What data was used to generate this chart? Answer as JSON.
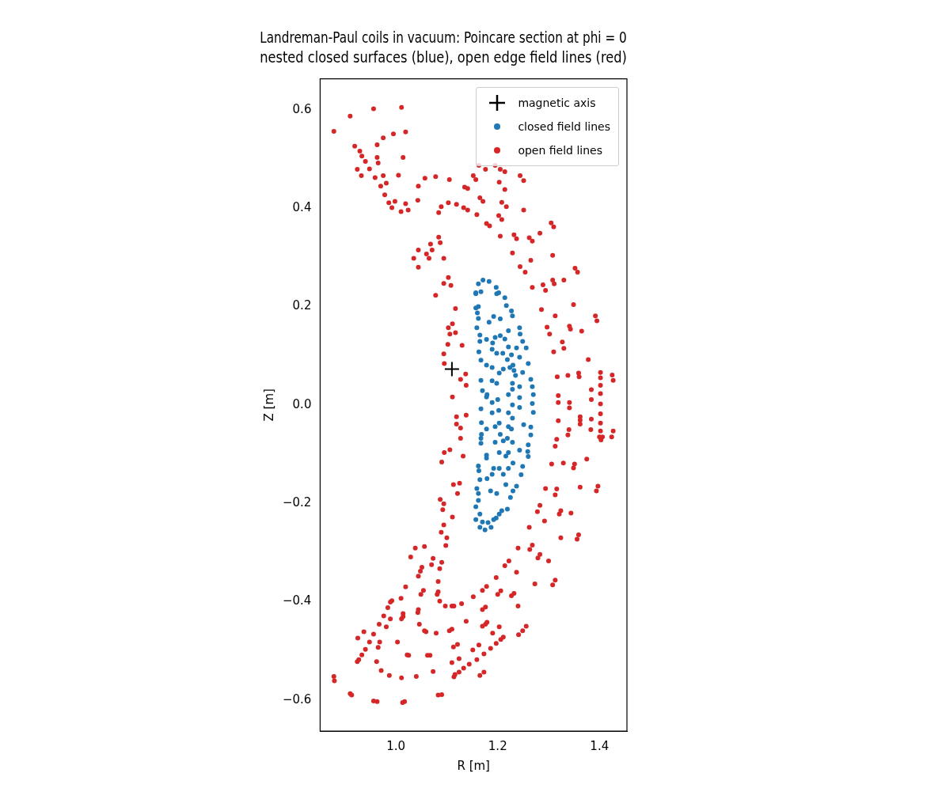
{
  "chart_data": {
    "type": "scatter",
    "title": "Landreman-Paul coils in vacuum: Poincare section at phi = 0",
    "subtitle": "nested closed surfaces (blue), open edge field lines (red)",
    "xlabel": "R [m]",
    "ylabel": "Z [m]",
    "xlim": [
      0.851,
      1.454
    ],
    "ylim": [
      -0.663,
      0.663
    ],
    "xticks": [
      {
        "value": 1,
        "label": "1.0"
      },
      {
        "value": 1.2,
        "label": "1.2"
      },
      {
        "value": 1.4,
        "label": "1.4"
      }
    ],
    "yticks": [
      {
        "value": -0.6,
        "label": "−0.6"
      },
      {
        "value": -0.4,
        "label": "−0.4"
      },
      {
        "value": -0.2,
        "label": "−0.2"
      },
      {
        "value": 0,
        "label": "0.0"
      },
      {
        "value": 0.2,
        "label": "0.2"
      },
      {
        "value": 0.4,
        "label": "0.4"
      },
      {
        "value": 0.6,
        "label": "0.6"
      }
    ],
    "grid": false,
    "legend": "top right",
    "series": [
      {
        "name": "magnetic axis",
        "color": "#000000",
        "marker": "cross",
        "x": [
          1.11
        ],
        "values": [
          0.073
        ]
      },
      {
        "name": "closed field lines",
        "color": "#1f77b4",
        "marker": "circle",
        "x": [
          1.171,
          1.183,
          1.197,
          1.162,
          1.157,
          1.167,
          1.202,
          1.214,
          1.157,
          1.198,
          1.157,
          1.162,
          1.16,
          1.162,
          1.217,
          1.227,
          1.229,
          1.159,
          1.165,
          1.165,
          1.163,
          1.167,
          1.167,
          1.17,
          1.179,
          1.167,
          1.168,
          1.168,
          1.167,
          1.167,
          1.178,
          1.162,
          1.163,
          1.165,
          1.159,
          1.162,
          1.162,
          1.157,
          1.165,
          1.243,
          1.244,
          1.249,
          1.256,
          1.26,
          1.265,
          1.268,
          1.27,
          1.268,
          1.27,
          1.265,
          1.265,
          1.26,
          1.259,
          1.26,
          1.249,
          1.246,
          1.237,
          1.23,
          1.225,
          1.219,
          1.208,
          1.203,
          1.157,
          1.165,
          1.175,
          1.187,
          1.197,
          1.17,
          1.181,
          1.192,
          1.183,
          1.192,
          1.205,
          1.221,
          1.237,
          1.243,
          1.249,
          1.243,
          1.243,
          1.243,
          1.251,
          1.243,
          1.23,
          1.216,
          1.198,
          1.186,
          1.179,
          1.178,
          1.178,
          1.178,
          1.178,
          1.178,
          1.195,
          1.205,
          1.214,
          1.221,
          1.227,
          1.23,
          1.235,
          1.229,
          1.229,
          1.229,
          1.227,
          1.229,
          1.221,
          1.216,
          1.203,
          1.195,
          1.195,
          1.189,
          1.189,
          1.189,
          1.189,
          1.189,
          1.19,
          1.198,
          1.21,
          1.219,
          1.224,
          1.211,
          1.203,
          1.198,
          1.2,
          1.202,
          1.203,
          1.205,
          1.211,
          1.219,
          1.221,
          1.221,
          1.221,
          1.229,
          1.232,
          1.203,
          1.211,
          1.221,
          1.192,
          1.189
        ],
        "values": [
          0.254,
          0.251,
          0.239,
          0.246,
          0.228,
          0.23,
          0.228,
          0.218,
          0.226,
          0.226,
          0.197,
          0.2,
          0.187,
          0.176,
          0.202,
          0.191,
          0.181,
          0.157,
          0.142,
          0.129,
          0.108,
          0.091,
          0.05,
          0.029,
          0.021,
          -0.008,
          -0.036,
          -0.06,
          -0.068,
          -0.078,
          -0.102,
          -0.124,
          -0.134,
          -0.152,
          -0.17,
          -0.18,
          -0.194,
          -0.207,
          -0.222,
          0.157,
          0.144,
          0.129,
          0.116,
          0.084,
          0.052,
          0.037,
          0.021,
          0.003,
          -0.015,
          -0.045,
          -0.061,
          -0.081,
          -0.095,
          -0.105,
          -0.125,
          -0.142,
          -0.165,
          -0.175,
          -0.188,
          -0.212,
          -0.215,
          -0.222,
          -0.233,
          -0.249,
          -0.254,
          -0.249,
          -0.23,
          -0.238,
          -0.239,
          -0.233,
          0.168,
          0.18,
          0.175,
          0.151,
          0.116,
          0.097,
          0.066,
          0.037,
          0.015,
          -0.005,
          -0.04,
          -0.092,
          -0.118,
          -0.162,
          -0.18,
          -0.175,
          -0.15,
          -0.108,
          -0.049,
          0.016,
          0.081,
          0.133,
          0.137,
          0.141,
          0.134,
          0.118,
          0.102,
          0.081,
          0.06,
          0.032,
          0,
          -0.027,
          -0.049,
          -0.076,
          -0.097,
          -0.104,
          -0.097,
          -0.076,
          -0.044,
          -0.016,
          0.005,
          0.049,
          0.076,
          0.113,
          0.126,
          0.105,
          0.105,
          0.092,
          0.076,
          0.073,
          0.065,
          0.044,
          0.011,
          -0.011,
          -0.037,
          -0.06,
          -0.073,
          -0.068,
          -0.044,
          -0.016,
          0.021,
          0.044,
          0.07,
          -0.129,
          -0.141,
          -0.129,
          -0.129,
          -0.141
        ]
      },
      {
        "name": "open field lines",
        "color": "#d62728",
        "marker": "circle",
        "x": [
          0.878,
          0.91,
          0.956,
          1.011,
          0.975,
          0.995,
          1.019,
          0.919,
          0.929,
          0.933,
          0.963,
          0.963,
          0.965,
          0.94,
          0.948,
          0.924,
          0.932,
          0.959,
          0.975,
          1.005,
          0.97,
          0.981,
          0.978,
          0.986,
          0.992,
          0.998,
          1.01,
          1.019,
          1.024,
          1.014,
          1.044,
          1.043,
          1.057,
          1.078,
          1.105,
          1.084,
          1.089,
          1.103,
          1.119,
          1.133,
          1.141,
          1.159,
          1.135,
          1.141,
          1.152,
          1.157,
          1.163,
          1.176,
          1.186,
          1.195,
          1.205,
          1.214,
          1.203,
          1.214,
          1.244,
          1.251,
          1.165,
          1.171,
          1.208,
          1.217,
          1.251,
          1.202,
          1.208,
          1.178,
          1.184,
          1.205,
          1.232,
          1.237,
          1.262,
          1.268,
          1.283,
          1.305,
          1.31,
          1.229,
          1.265,
          1.308,
          1.244,
          1.254,
          1.352,
          1.357,
          1.308,
          1.311,
          1.33,
          1.289,
          1.294,
          1.268,
          1.084,
          1.087,
          1.068,
          1.071,
          1.06,
          1.065,
          1.044,
          1.035,
          1.044,
          1.094,
          1.103,
          1.108,
          1.094,
          1.078,
          1.117,
          1.111,
          1.103,
          1.117,
          1.106,
          1.102,
          1.13,
          1.094,
          1.095,
          1.137,
          1.127,
          1.138,
          1.111,
          1.119,
          1.138,
          1.119,
          1.127,
          1.127,
          1.106,
          1.095,
          1.132,
          1.09,
          1.113,
          1.125,
          1.121,
          1.087,
          1.094,
          1.092,
          1.286,
          1.349,
          1.313,
          1.392,
          1.395,
          1.297,
          1.302,
          1.341,
          1.343,
          1.365,
          1.327,
          1.33,
          1.31,
          1.378,
          1.359,
          1.36,
          1.338,
          1.317,
          1.402,
          1.402,
          1.425,
          1.427,
          1.402,
          1.384,
          1.402,
          1.384,
          1.319,
          1.319,
          1.341,
          1.341,
          1.402,
          1.402,
          1.362,
          1.362,
          1.362,
          1.384,
          1.319,
          1.402,
          1.383,
          1.34,
          1.338,
          1.402,
          1.427,
          1.4,
          1.406,
          1.424,
          1.403,
          1.316,
          1.313,
          1.306,
          1.329,
          1.351,
          1.349,
          1.375,
          1.294,
          1.316,
          1.313,
          1.362,
          1.397,
          1.394,
          1.283,
          1.278,
          1.324,
          1.321,
          1.344,
          1.111,
          1.094,
          1.089,
          1.1,
          1.098,
          1.038,
          1.056,
          1.029,
          1.073,
          1.07,
          1.09,
          1.086,
          1.051,
          1.048,
          1.044,
          1.083,
          1.019,
          1.054,
          1.049,
          1.083,
          1.081,
          1.086,
          1.097,
          1.11,
          1.114,
          1.129,
          1.01,
          0.992,
          0.989,
          0.984,
          0.976,
          0.989,
          0.967,
          0.981,
          1.014,
          1.014,
          1.011,
          1.044,
          1.043,
          1.046,
          1.056,
          1.059,
          1.079,
          1.105,
          1.11,
          1.138,
          1.152,
          1.17,
          1.178,
          1.197,
          1.17,
          1.176,
          1.2,
          1.206,
          1.227,
          1.232,
          1.24,
          1.214,
          1.222,
          1.237,
          1.24,
          1.263,
          1.268,
          1.279,
          1.283,
          1.3,
          1.273,
          1.308,
          1.313,
          1.262,
          1.292,
          1.324,
          1.356,
          1.359,
          1.17,
          1.176,
          1.179,
          1.203,
          1.19,
          1.197,
          1.206,
          1.211,
          1.241,
          1.249,
          1.256,
          1.186,
          1.173,
          1.163,
          1.151,
          1.159,
          1.144,
          1.133,
          1.124,
          1.124,
          1.116,
          1.114,
          1.11,
          1.113,
          1.121,
          1.165,
          1.173,
          1.073,
          1.083,
          1.09,
          1.04,
          1.011,
          0.987,
          0.971,
          0.962,
          0.965,
          0.968,
          0.948,
          0.956,
          0.937,
          0.925,
          0.94,
          0.933,
          0.927,
          0.924,
          1.003,
          1.022,
          1.025,
          1.062,
          1.067,
          0.878,
          0.879,
          0.91,
          0.913,
          0.956,
          0.963,
          1.013,
          1.017
        ],
        "values": [
          0.556,
          0.587,
          0.602,
          0.605,
          0.543,
          0.551,
          0.555,
          0.526,
          0.516,
          0.506,
          0.529,
          0.503,
          0.492,
          0.495,
          0.48,
          0.479,
          0.466,
          0.462,
          0.466,
          0.467,
          0.445,
          0.451,
          0.427,
          0.411,
          0.401,
          0.414,
          0.393,
          0.409,
          0.396,
          0.503,
          0.445,
          0.416,
          0.461,
          0.464,
          0.458,
          0.391,
          0.403,
          0.411,
          0.408,
          0.401,
          0.396,
          0.387,
          0.443,
          0.44,
          0.466,
          0.458,
          0.487,
          0.479,
          null,
          0.487,
          0.479,
          0.474,
          0.453,
          0.438,
          0.466,
          0.456,
          0.421,
          0.414,
          0.412,
          0.403,
          0.396,
          0.385,
          0.377,
          0.369,
          0.364,
          0.343,
          0.346,
          0.338,
          0.34,
          0.333,
          0.349,
          0.37,
          0.362,
          0.309,
          0.294,
          0.304,
          0.281,
          0.27,
          0.278,
          0.27,
          0.254,
          0.246,
          0.254,
          0.244,
          0.233,
          0.239,
          0.341,
          0.33,
          0.327,
          0.315,
          0.307,
          0.298,
          0.315,
          0.298,
          0.28,
          0.298,
          0.259,
          0.243,
          0.247,
          0.223,
          0.196,
          0.165,
          0.157,
          0.147,
          0.144,
          0.123,
          0.121,
          0.104,
          0.084,
          0.063,
          0.052,
          0.04,
          0.016,
          -0.024,
          -0.021,
          -0.039,
          -0.047,
          -0.068,
          -0.091,
          -0.097,
          -0.104,
          -0.116,
          -0.162,
          -0.159,
          -0.18,
          -0.192,
          -0.201,
          -0.213,
          0.194,
          0.204,
          0.181,
          0.181,
          0.171,
          0.158,
          0.144,
          0.16,
          0.154,
          0.15,
          0.128,
          0.115,
          0.108,
          0.092,
          0.065,
          0.057,
          0.06,
          0.057,
          0.066,
          0.055,
          0.061,
          0.05,
          0.04,
          0.031,
          0.023,
          0.011,
          0.019,
          0.005,
          0.005,
          -0.006,
          0.002,
          -0.018,
          -0.024,
          -0.031,
          -0.039,
          -0.029,
          -0.032,
          -0.037,
          -0.05,
          -0.05,
          -0.061,
          -0.053,
          -0.053,
          -0.065,
          -0.065,
          -0.065,
          -0.071,
          -0.07,
          -0.084,
          -0.12,
          -0.118,
          -0.12,
          -0.128,
          -0.11,
          -0.17,
          -0.171,
          -0.183,
          -0.167,
          -0.165,
          -0.175,
          -0.204,
          -0.217,
          -0.215,
          -0.222,
          -0.22,
          -0.228,
          -0.244,
          -0.259,
          -0.27,
          -0.286,
          -0.291,
          -0.288,
          -0.309,
          -0.312,
          -0.325,
          -0.32,
          -0.333,
          -0.33,
          -0.338,
          -0.348,
          -0.359,
          -0.37,
          -0.377,
          -0.385,
          -0.38,
          -0.385,
          -0.399,
          -0.409,
          -0.409,
          -0.409,
          -0.404,
          -0.393,
          -0.398,
          -0.401,
          -0.412,
          -0.429,
          -0.435,
          -0.446,
          -0.451,
          -0.424,
          -0.43,
          -0.435,
          -0.416,
          -0.422,
          -0.446,
          -0.459,
          -0.461,
          -0.464,
          -0.459,
          -0.456,
          -0.44,
          -0.39,
          -0.377,
          -0.369,
          -0.351,
          -0.416,
          -0.411,
          -0.385,
          -0.378,
          -0.388,
          -0.383,
          -0.409,
          -0.327,
          -0.317,
          -0.34,
          -0.291,
          -0.294,
          -0.285,
          -0.311,
          -0.304,
          -0.317,
          -0.364,
          -0.366,
          -0.356,
          -0.249,
          -0.236,
          -0.27,
          -0.273,
          -0.264,
          -0.45,
          -0.446,
          -0.442,
          -0.451,
          -0.464,
          -0.485,
          -0.477,
          -0.472,
          -0.467,
          -0.459,
          -0.45,
          -0.495,
          -0.506,
          -0.488,
          -0.498,
          -0.518,
          -0.527,
          -0.535,
          -0.516,
          -0.543,
          -0.548,
          -0.553,
          -0.524,
          -0.492,
          -0.487,
          -0.55,
          -0.543,
          -0.542,
          -0.59,
          -0.589,
          -0.552,
          -0.555,
          -0.55,
          -0.54,
          -0.522,
          -0.493,
          -0.482,
          -0.482,
          -0.466,
          -0.461,
          -0.474,
          -0.497,
          -0.508,
          -0.518,
          -0.522,
          -0.482,
          -0.508,
          -0.509,
          -0.509,
          -0.509,
          -0.552,
          -0.561,
          -0.587,
          -0.59,
          -0.602,
          -0.603,
          -0.605,
          -0.603
        ]
      }
    ]
  }
}
